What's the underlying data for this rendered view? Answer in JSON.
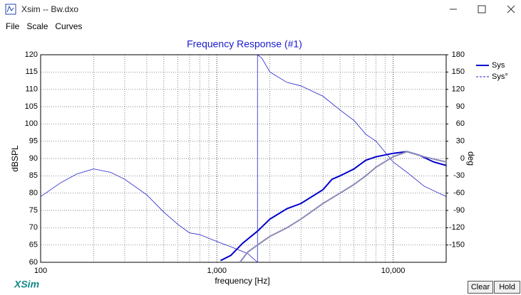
{
  "window": {
    "title": "Xsim -- Bw.dxo"
  },
  "menu": [
    "File",
    "Scale",
    "Curves"
  ],
  "chart_data": {
    "type": "line",
    "title": "Frequency Response (#1)",
    "x_label": "frequency [Hz]",
    "y_label": "dBSPL",
    "y2_label": "deg",
    "xscale": "log",
    "xlim": [
      100,
      20000
    ],
    "xticks": [
      100,
      {
        "value": 1000,
        "label": "1,000"
      },
      {
        "value": 10000,
        "label": "10,000"
      }
    ],
    "ylim": [
      60,
      120
    ],
    "yticks": [
      60,
      65,
      70,
      75,
      80,
      85,
      90,
      95,
      100,
      105,
      110,
      115,
      120
    ],
    "y2lim": [
      -180,
      180
    ],
    "y2ticks": [
      -150,
      -120,
      -90,
      -60,
      -30,
      0,
      30,
      60,
      90,
      120,
      150,
      180
    ],
    "grid": true,
    "legend": "right",
    "series": [
      {
        "name": "Sys",
        "color": "#0000cc",
        "width": 2,
        "x": [
          1050,
          1200,
          1400,
          1700,
          2000,
          2500,
          3000,
          4000,
          4500,
          5000,
          6000,
          7000,
          8000,
          10000,
          12000,
          14000,
          17000,
          20000
        ],
        "values": [
          60.5,
          62,
          65.5,
          69,
          72.5,
          75.5,
          77,
          81,
          84,
          85,
          87,
          89.5,
          90.5,
          91.5,
          92,
          91,
          89,
          88
        ]
      },
      {
        "name": "Sys°",
        "color": "#2222cc",
        "width": 0.8,
        "dash": true,
        "axis": "y2",
        "x": [
          1700,
          1700,
          1800,
          2000,
          2500,
          3000,
          4000,
          5000,
          6000,
          7000,
          8000,
          10000,
          12000,
          15000,
          20000
        ],
        "values": [
          -180,
          180,
          174,
          150,
          132,
          126,
          108,
          84,
          66,
          42,
          30,
          -6,
          -24,
          -48,
          -66
        ]
      },
      {
        "color": "#2222cc",
        "width": 0.8,
        "x": [
          100,
          130,
          160,
          200,
          250,
          300,
          400,
          500,
          600,
          700,
          800,
          1000,
          1200,
          1500,
          1700
        ],
        "values": [
          79,
          83,
          85.5,
          87,
          86,
          84,
          79.5,
          74.5,
          71,
          68.5,
          68,
          66,
          64.5,
          62.5,
          60
        ]
      },
      {
        "color": "#8a8ab8",
        "width": 2,
        "x": [
          1350,
          1500,
          1700,
          2000,
          2500,
          3000,
          4000,
          5000,
          6000,
          7000,
          8000,
          10000,
          12000,
          15000,
          20000
        ],
        "values": [
          60,
          63,
          65,
          67.5,
          70,
          72.5,
          77,
          80,
          82.5,
          85,
          87.5,
          90.5,
          92,
          90.5,
          89
        ]
      }
    ]
  },
  "logo": "XSim",
  "buttons": [
    "Clear",
    "Hold"
  ]
}
